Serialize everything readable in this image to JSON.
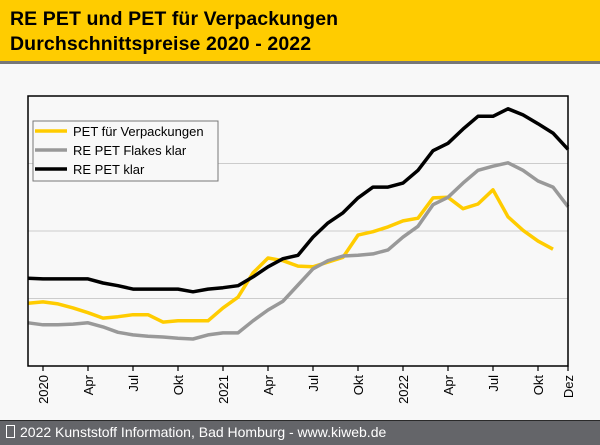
{
  "header": {
    "title_line1": "RE PET und PET für Verpackungen",
    "title_line2": "Durchschnittspreise 2020 - 2022",
    "background_color": "#ffcc00"
  },
  "footer": {
    "copyright_icon": "copyright-glyph-missing-box",
    "text": "2022 Kunststoff Information, Bad Homburg - www.kiweb.de"
  },
  "chart_data": {
    "type": "line",
    "title": "RE PET und PET für Verpackungen Durchschnittspreise 2020 - 2022",
    "xlabel": "",
    "ylabel": "",
    "y_units": "relative index (no y-axis labels shown; gridlines at 1, 2, 3)",
    "ylim": [
      0,
      4
    ],
    "y_gridlines": [
      1,
      2,
      3
    ],
    "grid": true,
    "legend_position": "top-left",
    "x": [
      "Dez 2019",
      "Jan 2020",
      "Feb 2020",
      "Mär 2020",
      "Apr 2020",
      "Mai 2020",
      "Jun 2020",
      "Jul 2020",
      "Aug 2020",
      "Sep 2020",
      "Okt 2020",
      "Nov 2020",
      "Dez 2020",
      "Jan 2021",
      "Feb 2021",
      "Mär 2021",
      "Apr 2021",
      "Mai 2021",
      "Jun 2021",
      "Jul 2021",
      "Aug 2021",
      "Sep 2021",
      "Okt 2021",
      "Nov 2021",
      "Dez 2021",
      "Jan 2022",
      "Feb 2022",
      "Mär 2022",
      "Apr 2022",
      "Mai 2022",
      "Jun 2022",
      "Jul 2022",
      "Aug 2022",
      "Sep 2022",
      "Okt 2022",
      "Nov 2022",
      "Dez 2022"
    ],
    "x_ticks": [
      {
        "label": "2020",
        "index": 1
      },
      {
        "label": "Apr",
        "index": 4
      },
      {
        "label": "Jul",
        "index": 7
      },
      {
        "label": "Okt",
        "index": 10
      },
      {
        "label": "2021",
        "index": 13
      },
      {
        "label": "Apr",
        "index": 16
      },
      {
        "label": "Jul",
        "index": 19
      },
      {
        "label": "Okt",
        "index": 22
      },
      {
        "label": "2022",
        "index": 25
      },
      {
        "label": "Apr",
        "index": 28
      },
      {
        "label": "Jul",
        "index": 31
      },
      {
        "label": "Okt",
        "index": 34
      },
      {
        "label": "Dez",
        "index": 36
      }
    ],
    "series": [
      {
        "name": "PET für Verpackungen",
        "color": "#ffcc00",
        "values": [
          0.93,
          0.95,
          0.92,
          0.86,
          0.79,
          0.71,
          0.73,
          0.76,
          0.76,
          0.65,
          0.67,
          0.67,
          0.67,
          0.86,
          1.02,
          1.38,
          1.6,
          1.56,
          1.48,
          1.47,
          1.54,
          1.61,
          1.94,
          1.99,
          2.06,
          2.15,
          2.19,
          2.49,
          2.5,
          2.33,
          2.4,
          2.61,
          2.21,
          2.01,
          1.85,
          1.73,
          null
        ]
      },
      {
        "name": "RE PET Flakes klar",
        "color": "#999999",
        "values": [
          0.64,
          0.61,
          0.61,
          0.62,
          0.64,
          0.58,
          0.5,
          0.46,
          0.44,
          0.43,
          0.41,
          0.4,
          0.46,
          0.49,
          0.49,
          0.67,
          0.83,
          0.96,
          1.2,
          1.44,
          1.56,
          1.63,
          1.64,
          1.66,
          1.72,
          1.91,
          2.07,
          2.39,
          2.5,
          2.71,
          2.9,
          2.96,
          3.01,
          2.9,
          2.74,
          2.65,
          2.36
        ]
      },
      {
        "name": "RE PET klar",
        "color": "#000000",
        "values": [
          1.3,
          1.29,
          1.29,
          1.29,
          1.29,
          1.23,
          1.19,
          1.14,
          1.14,
          1.14,
          1.14,
          1.1,
          1.14,
          1.16,
          1.19,
          1.32,
          1.47,
          1.59,
          1.64,
          1.91,
          2.12,
          2.27,
          2.49,
          2.65,
          2.65,
          2.71,
          2.9,
          3.19,
          3.3,
          3.51,
          3.7,
          3.7,
          3.81,
          3.72,
          3.59,
          3.45,
          3.21
        ]
      }
    ]
  }
}
